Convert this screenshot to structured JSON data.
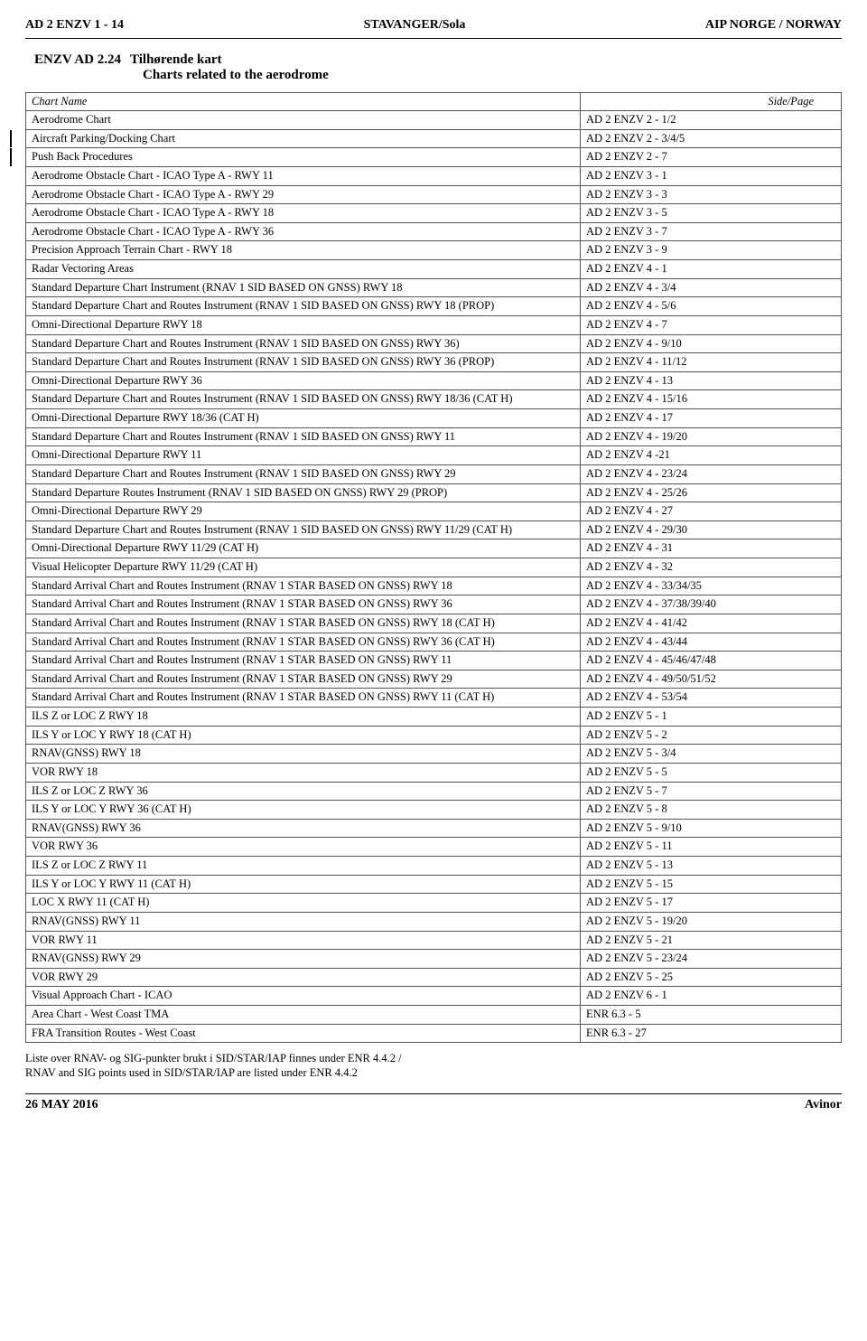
{
  "header": {
    "left": "AD 2 ENZV 1 - 14",
    "center": "STAVANGER/Sola",
    "right": "AIP NORGE / NORWAY"
  },
  "section": {
    "number": "ENZV AD 2.24",
    "title_no": "Tilhørende kart",
    "title_en": "Charts related to the aerodrome"
  },
  "table": {
    "headers": {
      "name": "Chart Name",
      "page": "Side/Page"
    },
    "rows": [
      {
        "name": "Aerodrome Chart",
        "page": "AD 2 ENZV 2 - 1/2",
        "rev": false
      },
      {
        "name": "Aircraft Parking/Docking Chart",
        "page": "AD 2 ENZV 2 - 3/4/5",
        "rev": true
      },
      {
        "name": "Push Back Procedures",
        "page": "AD 2 ENZV 2 - 7",
        "rev": true
      },
      {
        "name": "Aerodrome Obstacle Chart - ICAO Type A - RWY 11",
        "page": "AD 2 ENZV 3 - 1",
        "rev": false
      },
      {
        "name": "Aerodrome Obstacle Chart - ICAO Type A - RWY 29",
        "page": "AD 2 ENZV 3 - 3",
        "rev": false
      },
      {
        "name": "Aerodrome Obstacle Chart - ICAO Type A - RWY 18",
        "page": "AD 2 ENZV 3 - 5",
        "rev": false
      },
      {
        "name": "Aerodrome Obstacle Chart - ICAO Type A - RWY 36",
        "page": "AD 2 ENZV 3 - 7",
        "rev": false
      },
      {
        "name": "Precision Approach Terrain Chart - RWY 18",
        "page": "AD 2 ENZV 3 - 9",
        "rev": false
      },
      {
        "name": "Radar Vectoring Areas",
        "page": "AD 2 ENZV 4 - 1",
        "rev": false
      },
      {
        "name": "Standard Departure Chart Instrument (RNAV 1 SID BASED ON GNSS) RWY 18",
        "page": "AD 2 ENZV 4 - 3/4",
        "rev": false
      },
      {
        "name": "Standard Departure Chart and Routes Instrument (RNAV 1 SID BASED ON GNSS) RWY 18 (PROP)",
        "page": "AD 2 ENZV 4 - 5/6",
        "rev": false
      },
      {
        "name": "Omni-Directional Departure RWY 18",
        "page": "AD 2 ENZV 4 - 7",
        "rev": false
      },
      {
        "name": "Standard Departure Chart and Routes Instrument (RNAV 1 SID BASED ON GNSS) RWY 36)",
        "page": "AD 2 ENZV 4 - 9/10",
        "rev": false
      },
      {
        "name": "Standard Departure Chart and Routes Instrument (RNAV 1 SID BASED ON GNSS) RWY 36 (PROP)",
        "page": "AD 2 ENZV 4 - 11/12",
        "rev": false
      },
      {
        "name": "Omni-Directional Departure RWY 36",
        "page": "AD 2 ENZV 4 - 13",
        "rev": false
      },
      {
        "name": "Standard Departure Chart and Routes Instrument (RNAV 1 SID BASED ON GNSS) RWY 18/36 (CAT H)",
        "page": "AD 2 ENZV 4 - 15/16",
        "rev": false
      },
      {
        "name": "Omni-Directional Departure RWY 18/36 (CAT H)",
        "page": "AD 2 ENZV 4 - 17",
        "rev": false
      },
      {
        "name": "Standard Departure Chart and Routes Instrument (RNAV 1 SID BASED ON GNSS) RWY 11",
        "page": "AD 2 ENZV 4 - 19/20",
        "rev": false
      },
      {
        "name": "Omni-Directional Departure RWY 11",
        "page": "AD 2 ENZV 4 -21",
        "rev": false
      },
      {
        "name": "Standard Departure Chart and Routes Instrument (RNAV 1 SID BASED ON GNSS) RWY 29",
        "page": "AD 2 ENZV 4 - 23/24",
        "rev": false
      },
      {
        "name": "Standard Departure Routes Instrument (RNAV 1 SID BASED ON GNSS) RWY 29 (PROP)",
        "page": "AD 2 ENZV 4 - 25/26",
        "rev": false
      },
      {
        "name": "Omni-Directional Departure RWY 29",
        "page": "AD 2 ENZV 4 - 27",
        "rev": false
      },
      {
        "name": "Standard Departure Chart and Routes Instrument (RNAV 1 SID BASED ON GNSS) RWY 11/29 (CAT H)",
        "page": "AD 2 ENZV 4 - 29/30",
        "rev": false
      },
      {
        "name": "Omni-Directional Departure RWY 11/29 (CAT H)",
        "page": "AD 2 ENZV 4 - 31",
        "rev": false
      },
      {
        "name": "Visual Helicopter Departure RWY 11/29 (CAT H)",
        "page": "AD 2 ENZV 4 - 32",
        "rev": false
      },
      {
        "name": "Standard Arrival Chart and Routes Instrument (RNAV 1 STAR BASED ON GNSS) RWY 18",
        "page": "AD 2 ENZV 4 - 33/34/35",
        "rev": false
      },
      {
        "name": "Standard Arrival Chart and Routes Instrument (RNAV 1 STAR BASED ON GNSS) RWY 36",
        "page": "AD 2 ENZV 4 - 37/38/39/40",
        "rev": false
      },
      {
        "name": "Standard Arrival Chart and Routes Instrument (RNAV 1 STAR BASED ON GNSS) RWY 18 (CAT H)",
        "page": "AD 2 ENZV 4 - 41/42",
        "rev": false
      },
      {
        "name": "Standard Arrival Chart and Routes Instrument (RNAV 1 STAR BASED ON GNSS) RWY 36 (CAT H)",
        "page": "AD 2 ENZV 4 - 43/44",
        "rev": false
      },
      {
        "name": "Standard Arrival Chart and Routes Instrument (RNAV 1 STAR BASED ON GNSS) RWY 11",
        "page": "AD 2 ENZV 4 - 45/46/47/48",
        "rev": false
      },
      {
        "name": "Standard Arrival Chart and Routes Instrument (RNAV 1 STAR BASED ON GNSS) RWY 29",
        "page": "AD 2 ENZV 4 - 49/50/51/52",
        "rev": false
      },
      {
        "name": "Standard Arrival Chart and Routes Instrument (RNAV 1 STAR BASED ON GNSS) RWY 11 (CAT H)",
        "page": "AD 2 ENZV 4 - 53/54",
        "rev": false
      },
      {
        "name": "ILS Z or LOC Z RWY 18",
        "page": "AD 2 ENZV 5 - 1",
        "rev": false
      },
      {
        "name": "ILS Y or LOC Y RWY 18 (CAT H)",
        "page": "AD 2 ENZV 5 - 2",
        "rev": false
      },
      {
        "name": "RNAV(GNSS) RWY 18",
        "page": "AD 2 ENZV 5 - 3/4",
        "rev": false
      },
      {
        "name": "VOR RWY 18",
        "page": "AD 2 ENZV 5 - 5",
        "rev": false
      },
      {
        "name": "ILS Z or LOC Z RWY 36",
        "page": "AD 2 ENZV 5 - 7",
        "rev": false
      },
      {
        "name": "ILS Y or LOC Y RWY 36 (CAT H)",
        "page": "AD 2 ENZV 5 - 8",
        "rev": false
      },
      {
        "name": "RNAV(GNSS) RWY 36",
        "page": "AD 2 ENZV 5 - 9/10",
        "rev": false
      },
      {
        "name": "VOR RWY 36",
        "page": "AD 2 ENZV 5 - 11",
        "rev": false
      },
      {
        "name": "ILS Z or LOC Z RWY 11",
        "page": "AD 2 ENZV 5 - 13",
        "rev": false
      },
      {
        "name": "ILS Y or LOC Y RWY 11 (CAT H)",
        "page": "AD 2 ENZV 5 - 15",
        "rev": false
      },
      {
        "name": "LOC X RWY 11 (CAT H)",
        "page": "AD 2 ENZV 5 - 17",
        "rev": false
      },
      {
        "name": "RNAV(GNSS) RWY 11",
        "page": "AD 2 ENZV 5 - 19/20",
        "rev": false
      },
      {
        "name": "VOR RWY 11",
        "page": "AD 2 ENZV 5 - 21",
        "rev": false
      },
      {
        "name": "RNAV(GNSS) RWY 29",
        "page": "AD 2 ENZV 5 - 23/24",
        "rev": false
      },
      {
        "name": "VOR RWY 29",
        "page": "AD 2 ENZV 5 - 25",
        "rev": false
      },
      {
        "name": "Visual Approach Chart - ICAO",
        "page": "AD 2 ENZV 6 - 1",
        "rev": false
      },
      {
        "name": "Area Chart - West Coast TMA",
        "page": "ENR 6.3 - 5",
        "rev": false
      },
      {
        "name": "FRA Transition Routes - West Coast",
        "page": "ENR 6.3 - 27",
        "rev": false
      }
    ]
  },
  "footnote": {
    "line1": "Liste over RNAV- og SIG-punkter brukt i SID/STAR/IAP finnes under ENR 4.4.2 /",
    "line2": "RNAV and SIG points used in SID/STAR/IAP are listed under ENR 4.4.2"
  },
  "footer": {
    "left": "26 MAY 2016",
    "right": "Avinor"
  }
}
